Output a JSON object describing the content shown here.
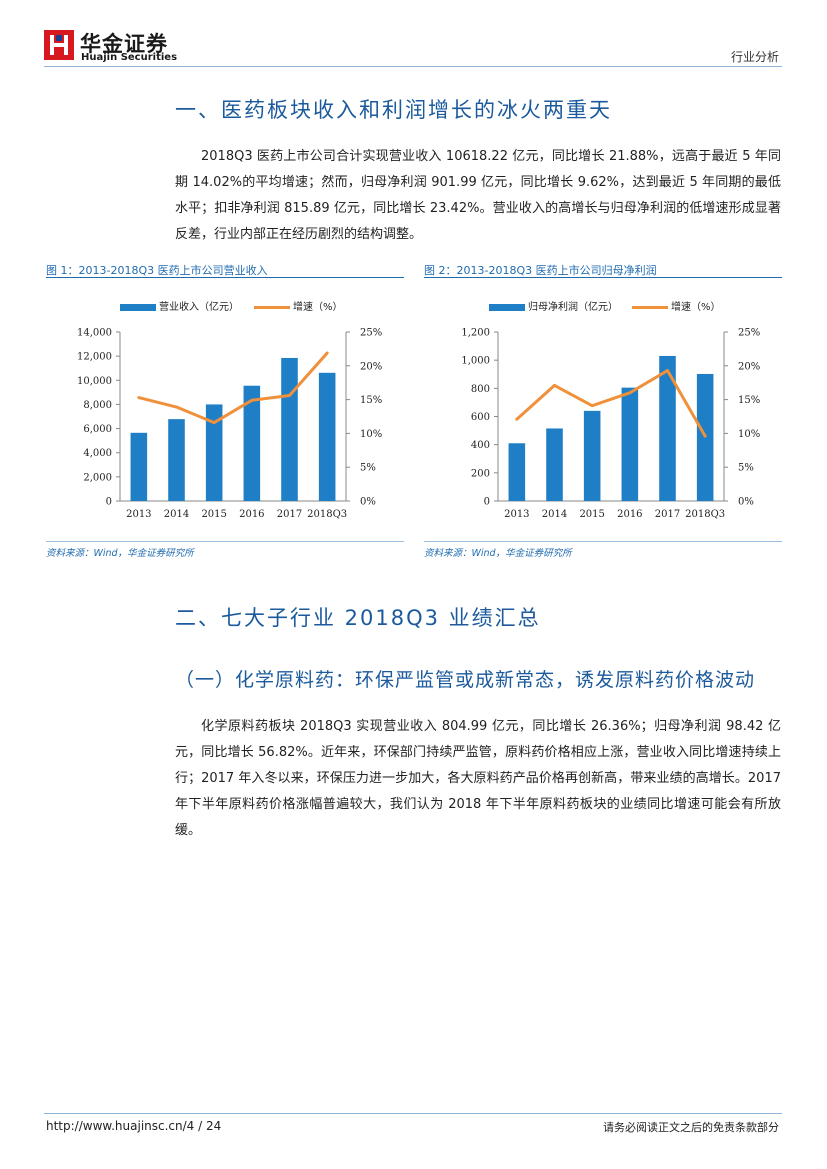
{
  "header": {
    "logo_cn": "华金证券",
    "logo_en": "Huajin Securities",
    "category": "行业分析"
  },
  "section1": {
    "title": "一、医药板块收入和利润增长的冰火两重天",
    "paragraph": "2018Q3 医药上市公司合计实现营业收入 10618.22 亿元，同比增长 21.88%，远高于最近 5 年同期 14.02%的平均增速；然而，归母净利润 901.99 亿元，同比增长 9.62%，达到最近 5 年同期的最低水平；扣非净利润 815.89 亿元，同比增长 23.42%。营业收入的高增长与归母净利润的低增速形成显著反差，行业内部正在经历剧烈的结构调整。"
  },
  "section2": {
    "title": "二、七大子行业 2018Q3 业绩汇总",
    "sub1": {
      "title": "（一）化学原料药：环保严监管或成新常态，诱发原料药价格波动",
      "paragraph": "化学原料药板块 2018Q3 实现营业收入 804.99 亿元，同比增长 26.36%；归母净利润 98.42 亿元，同比增长 56.82%。近年来，环保部门持续严监管，原料药价格相应上涨，营业收入同比增速持续上行；2017 年入冬以来，环保压力进一步加大，各大原料药产品价格再创新高，带来业绩的高增长。2017 年下半年原料药价格涨幅普遍较大，我们认为 2018 年下半年原料药板块的业绩同比增速可能会有所放缓。"
    }
  },
  "colors": {
    "bar": "#1f7fc6",
    "line": "#f0903a",
    "accent": "#1b5a9c"
  },
  "chart_data": [
    {
      "type": "bar",
      "figure_label": "图 1：2013-2018Q3 医药上市公司营业收入",
      "categories": [
        "2013",
        "2014",
        "2015",
        "2016",
        "2017",
        "2018Q3"
      ],
      "series": [
        {
          "name": "营业收入（亿元）",
          "kind": "bar",
          "axis": "left",
          "values": [
            5650,
            6780,
            8000,
            9550,
            11850,
            10620
          ]
        },
        {
          "name": "增速（%）",
          "kind": "line",
          "axis": "right",
          "values": [
            15.3,
            13.9,
            11.6,
            14.9,
            15.6,
            21.9
          ]
        }
      ],
      "left_ticks": [
        "0",
        "2,000",
        "4,000",
        "6,000",
        "8,000",
        "10,000",
        "12,000",
        "14,000"
      ],
      "right_ticks": [
        "0%",
        "5%",
        "10%",
        "15%",
        "20%",
        "25%"
      ],
      "ylim_left": [
        0,
        14000
      ],
      "ylim_right": [
        0,
        25
      ],
      "source": "资料来源：Wind，华金证券研究所"
    },
    {
      "type": "bar",
      "figure_label": "图 2：2013-2018Q3 医药上市公司归母净利润",
      "categories": [
        "2013",
        "2014",
        "2015",
        "2016",
        "2017",
        "2018Q3"
      ],
      "series": [
        {
          "name": "归母净利润（亿元）",
          "kind": "bar",
          "axis": "left",
          "values": [
            410,
            515,
            640,
            805,
            1030,
            902
          ]
        },
        {
          "name": "增速（%）",
          "kind": "line",
          "axis": "right",
          "values": [
            12.1,
            17.1,
            14.1,
            16.0,
            19.3,
            9.6
          ]
        }
      ],
      "left_ticks": [
        "0",
        "200",
        "400",
        "600",
        "800",
        "1,000",
        "1,200"
      ],
      "right_ticks": [
        "0%",
        "5%",
        "10%",
        "15%",
        "20%",
        "25%"
      ],
      "ylim_left": [
        0,
        1200
      ],
      "ylim_right": [
        0,
        25
      ],
      "source": "资料来源：Wind，华金证券研究所"
    }
  ],
  "footer": {
    "url": "http://www.huajinsc.cn/4 / 24",
    "note": "请务必阅读正文之后的免责条款部分"
  }
}
